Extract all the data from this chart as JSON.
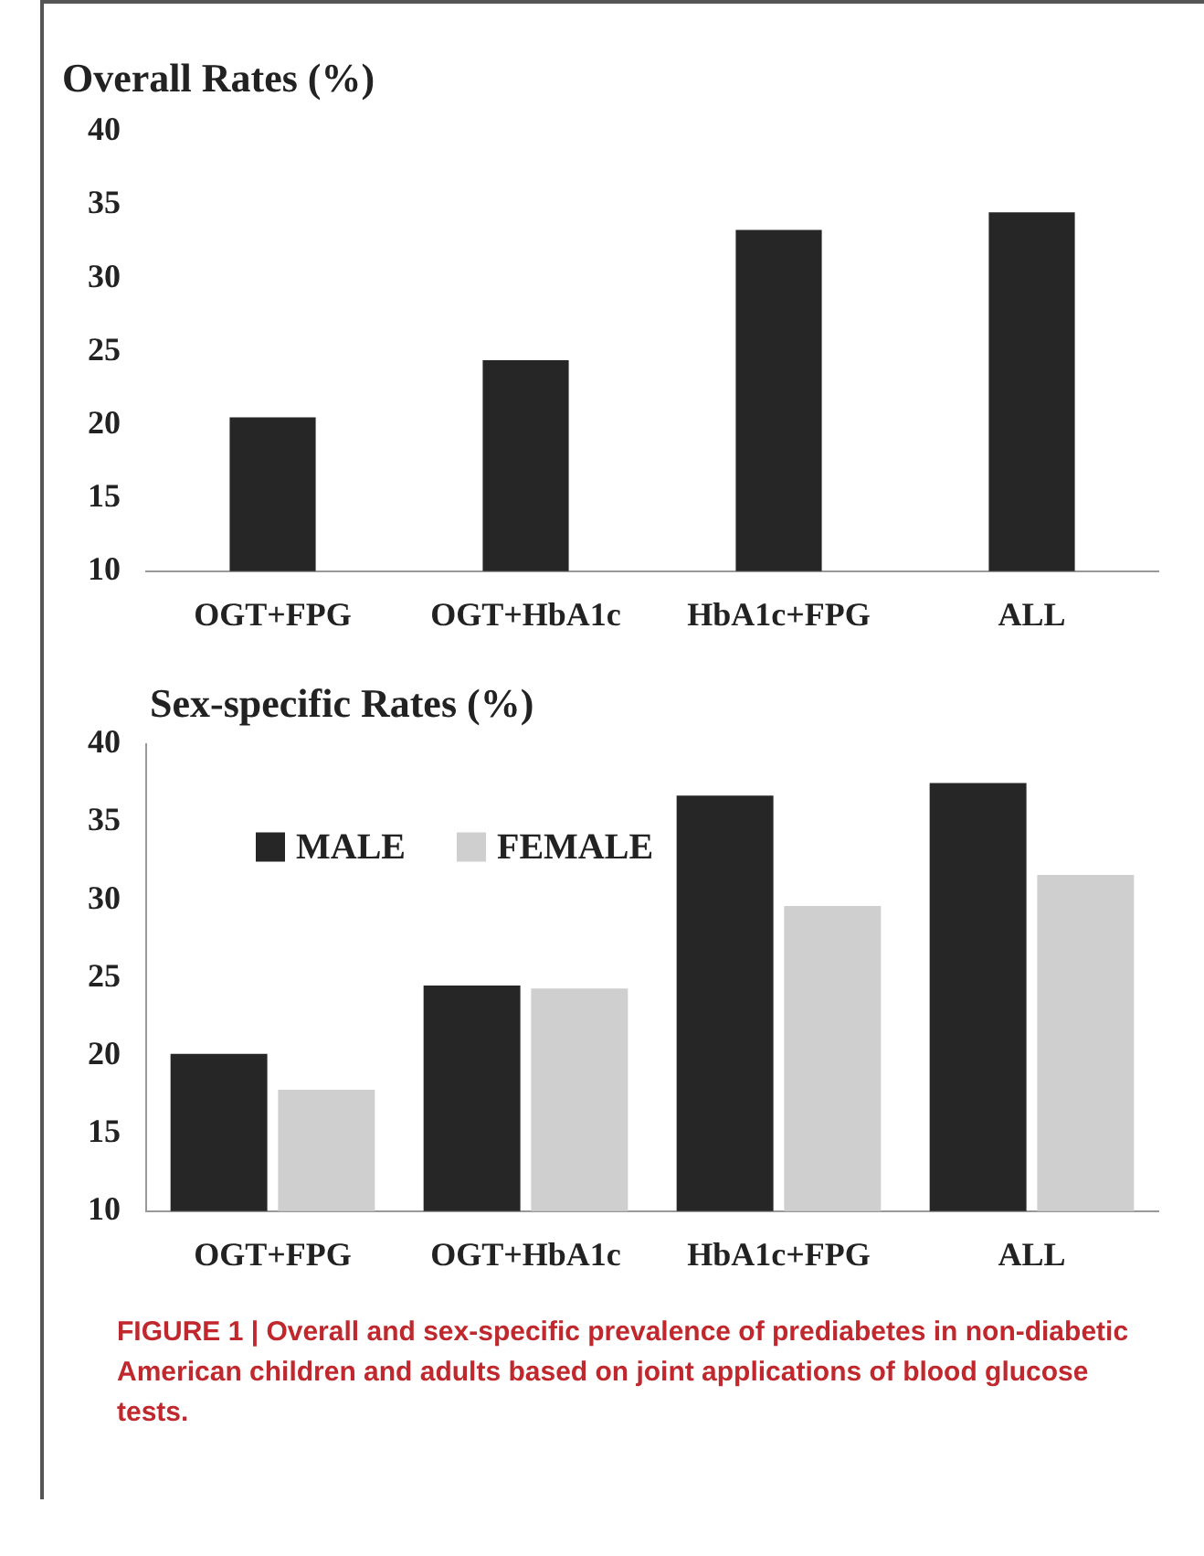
{
  "chart_data": [
    {
      "type": "bar",
      "title": "Overall Rates (%)",
      "categories": [
        "OGT+FPG",
        "OGT+HbA1c",
        "HbA1c+FPG",
        "ALL"
      ],
      "values": [
        20.5,
        24.4,
        33.3,
        34.5
      ],
      "color": "#262626",
      "ylim": [
        10,
        40
      ],
      "yticks": [
        10,
        15,
        20,
        25,
        30,
        35,
        40
      ],
      "grid": false,
      "legend": false
    },
    {
      "type": "bar",
      "title": "Sex-specific Rates (%)",
      "categories": [
        "OGT+FPG",
        "OGT+HbA1c",
        "HbA1c+FPG",
        "ALL"
      ],
      "series": [
        {
          "name": "MALE",
          "color": "#262626",
          "values": [
            20.1,
            24.5,
            36.7,
            37.5
          ]
        },
        {
          "name": "FEMALE",
          "color": "#cfcfcf",
          "values": [
            17.8,
            24.3,
            29.6,
            31.6
          ]
        }
      ],
      "ylim": [
        10,
        40
      ],
      "yticks": [
        10,
        15,
        20,
        25,
        30,
        35,
        40
      ],
      "grid": false,
      "legend": "top left",
      "annotations": [
        "FIGURE 1 | Overall and sex-specific prevalence of prediabetes in non-diabetic American children and adults based on joint applications of blood glucose tests."
      ]
    }
  ]
}
